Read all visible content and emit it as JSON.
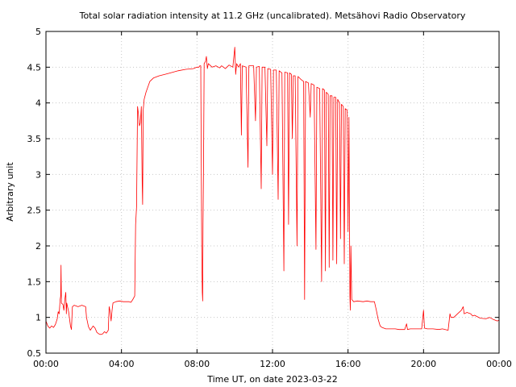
{
  "chart_data": {
    "type": "line",
    "title": "Total solar radiation intensity at 11.2 GHz (uncalibrated). Metsähovi Radio Observatory",
    "xlabel": "Time UT, on date 2023-03-22",
    "ylabel": "Arbitrary unit",
    "xlim": [
      0,
      24
    ],
    "ylim": [
      0.5,
      5
    ],
    "x_ticks": [
      {
        "v": 0,
        "label": "00:00"
      },
      {
        "v": 4,
        "label": "04:00"
      },
      {
        "v": 8,
        "label": "08:00"
      },
      {
        "v": 12,
        "label": "12:00"
      },
      {
        "v": 16,
        "label": "16:00"
      },
      {
        "v": 20,
        "label": "20:00"
      },
      {
        "v": 24,
        "label": "00:00"
      }
    ],
    "y_ticks": [
      {
        "v": 0.5,
        "label": "0.5"
      },
      {
        "v": 1,
        "label": "1"
      },
      {
        "v": 1.5,
        "label": "1.5"
      },
      {
        "v": 2,
        "label": "2"
      },
      {
        "v": 2.5,
        "label": "2.5"
      },
      {
        "v": 3,
        "label": "3"
      },
      {
        "v": 3.5,
        "label": "3.5"
      },
      {
        "v": 4,
        "label": "4"
      },
      {
        "v": 4.5,
        "label": "4.5"
      },
      {
        "v": 5,
        "label": "5"
      }
    ],
    "grid": true,
    "series_color": "#ff0000",
    "series": [
      {
        "points": [
          [
            0.0,
            0.95
          ],
          [
            0.1,
            0.88
          ],
          [
            0.2,
            0.85
          ],
          [
            0.3,
            0.88
          ],
          [
            0.4,
            0.86
          ],
          [
            0.5,
            0.9
          ],
          [
            0.6,
            0.98
          ],
          [
            0.65,
            1.08
          ],
          [
            0.7,
            1.05
          ],
          [
            0.75,
            1.25
          ],
          [
            0.78,
            1.3
          ],
          [
            0.8,
            1.73
          ],
          [
            0.82,
            1.2
          ],
          [
            0.9,
            1.18
          ],
          [
            0.95,
            1.1
          ],
          [
            1.0,
            1.25
          ],
          [
            1.05,
            1.35
          ],
          [
            1.08,
            1.05
          ],
          [
            1.1,
            1.2
          ],
          [
            1.2,
            1.08
          ],
          [
            1.3,
            0.88
          ],
          [
            1.35,
            0.83
          ],
          [
            1.4,
            1.15
          ],
          [
            1.5,
            1.17
          ],
          [
            1.7,
            1.15
          ],
          [
            1.9,
            1.17
          ],
          [
            2.1,
            1.15
          ],
          [
            2.15,
            1.0
          ],
          [
            2.25,
            0.87
          ],
          [
            2.35,
            0.82
          ],
          [
            2.5,
            0.88
          ],
          [
            2.6,
            0.85
          ],
          [
            2.7,
            0.79
          ],
          [
            2.8,
            0.77
          ],
          [
            2.9,
            0.76
          ],
          [
            3.0,
            0.77
          ],
          [
            3.1,
            0.8
          ],
          [
            3.2,
            0.78
          ],
          [
            3.3,
            0.82
          ],
          [
            3.35,
            1.15
          ],
          [
            3.4,
            1.08
          ],
          [
            3.45,
            0.95
          ],
          [
            3.5,
            1.1
          ],
          [
            3.55,
            1.2
          ],
          [
            3.7,
            1.22
          ],
          [
            3.9,
            1.23
          ],
          [
            4.1,
            1.22
          ],
          [
            4.4,
            1.22
          ],
          [
            4.5,
            1.21
          ],
          [
            4.6,
            1.25
          ],
          [
            4.7,
            1.3
          ],
          [
            4.75,
            2.3
          ],
          [
            4.8,
            2.55
          ],
          [
            4.85,
            3.95
          ],
          [
            4.9,
            3.85
          ],
          [
            4.95,
            3.68
          ],
          [
            5.0,
            3.72
          ],
          [
            5.05,
            3.95
          ],
          [
            5.1,
            2.85
          ],
          [
            5.12,
            2.58
          ],
          [
            5.15,
            3.9
          ],
          [
            5.2,
            4.05
          ],
          [
            5.3,
            4.15
          ],
          [
            5.5,
            4.3
          ],
          [
            5.7,
            4.35
          ],
          [
            6.0,
            4.38
          ],
          [
            6.3,
            4.4
          ],
          [
            6.6,
            4.42
          ],
          [
            7.0,
            4.45
          ],
          [
            7.4,
            4.47
          ],
          [
            7.8,
            4.48
          ],
          [
            8.0,
            4.5
          ],
          [
            8.1,
            4.5
          ],
          [
            8.15,
            4.52
          ],
          [
            8.2,
            4.52
          ],
          [
            8.25,
            2.0
          ],
          [
            8.28,
            1.35
          ],
          [
            8.3,
            1.23
          ],
          [
            8.32,
            2.3
          ],
          [
            8.35,
            3.2
          ],
          [
            8.38,
            4.55
          ],
          [
            8.45,
            4.58
          ],
          [
            8.5,
            4.65
          ],
          [
            8.55,
            4.48
          ],
          [
            8.6,
            4.55
          ],
          [
            8.8,
            4.5
          ],
          [
            9.0,
            4.52
          ],
          [
            9.2,
            4.49
          ],
          [
            9.3,
            4.52
          ],
          [
            9.5,
            4.48
          ],
          [
            9.7,
            4.53
          ],
          [
            9.9,
            4.5
          ],
          [
            10.0,
            4.78
          ],
          [
            10.05,
            4.4
          ],
          [
            10.1,
            4.55
          ],
          [
            10.2,
            4.5
          ],
          [
            10.3,
            4.55
          ],
          [
            10.35,
            3.55
          ],
          [
            10.4,
            4.52
          ],
          [
            10.6,
            4.5
          ],
          [
            10.7,
            3.1
          ],
          [
            10.75,
            4.52
          ],
          [
            11.0,
            4.52
          ],
          [
            11.1,
            3.75
          ],
          [
            11.15,
            4.5
          ],
          [
            11.3,
            4.51
          ],
          [
            11.4,
            2.8
          ],
          [
            11.45,
            4.5
          ],
          [
            11.6,
            4.5
          ],
          [
            11.7,
            3.4
          ],
          [
            11.75,
            4.48
          ],
          [
            11.9,
            4.47
          ],
          [
            12.0,
            3.0
          ],
          [
            12.05,
            4.46
          ],
          [
            12.2,
            4.46
          ],
          [
            12.3,
            2.65
          ],
          [
            12.35,
            4.45
          ],
          [
            12.5,
            4.42
          ],
          [
            12.6,
            1.65
          ],
          [
            12.65,
            4.43
          ],
          [
            12.8,
            4.42
          ],
          [
            12.85,
            2.3
          ],
          [
            12.9,
            4.42
          ],
          [
            13.0,
            4.4
          ],
          [
            13.05,
            3.5
          ],
          [
            13.1,
            4.38
          ],
          [
            13.2,
            4.38
          ],
          [
            13.3,
            2.0
          ],
          [
            13.35,
            4.37
          ],
          [
            13.5,
            4.33
          ],
          [
            13.65,
            4.3
          ],
          [
            13.7,
            1.25
          ],
          [
            13.75,
            4.3
          ],
          [
            13.9,
            4.28
          ],
          [
            14.0,
            3.8
          ],
          [
            14.05,
            4.27
          ],
          [
            14.2,
            4.25
          ],
          [
            14.3,
            1.95
          ],
          [
            14.35,
            4.22
          ],
          [
            14.5,
            4.2
          ],
          [
            14.6,
            1.5
          ],
          [
            14.65,
            4.2
          ],
          [
            14.75,
            4.18
          ],
          [
            14.8,
            1.65
          ],
          [
            14.85,
            4.15
          ],
          [
            14.95,
            4.12
          ],
          [
            15.0,
            1.7
          ],
          [
            15.05,
            4.1
          ],
          [
            15.15,
            4.1
          ],
          [
            15.2,
            1.8
          ],
          [
            15.25,
            4.08
          ],
          [
            15.35,
            4.08
          ],
          [
            15.4,
            1.75
          ],
          [
            15.45,
            4.05
          ],
          [
            15.55,
            4.0
          ],
          [
            15.6,
            2.1
          ],
          [
            15.65,
            3.98
          ],
          [
            15.75,
            3.95
          ],
          [
            15.8,
            1.75
          ],
          [
            15.85,
            3.92
          ],
          [
            15.95,
            3.9
          ],
          [
            16.0,
            2.2
          ],
          [
            16.05,
            3.8
          ],
          [
            16.1,
            1.3
          ],
          [
            16.12,
            1.1
          ],
          [
            16.15,
            2.0
          ],
          [
            16.2,
            1.25
          ],
          [
            16.3,
            1.22
          ],
          [
            16.5,
            1.23
          ],
          [
            16.8,
            1.22
          ],
          [
            17.0,
            1.23
          ],
          [
            17.2,
            1.22
          ],
          [
            17.4,
            1.22
          ],
          [
            17.5,
            1.1
          ],
          [
            17.6,
            0.97
          ],
          [
            17.7,
            0.88
          ],
          [
            17.8,
            0.86
          ],
          [
            18.0,
            0.84
          ],
          [
            18.3,
            0.84
          ],
          [
            18.5,
            0.84
          ],
          [
            18.7,
            0.83
          ],
          [
            19.0,
            0.83
          ],
          [
            19.1,
            0.91
          ],
          [
            19.15,
            0.83
          ],
          [
            19.3,
            0.84
          ],
          [
            19.6,
            0.84
          ],
          [
            19.9,
            0.84
          ],
          [
            20.0,
            1.1
          ],
          [
            20.05,
            0.85
          ],
          [
            20.2,
            0.84
          ],
          [
            20.5,
            0.84
          ],
          [
            20.8,
            0.83
          ],
          [
            21.0,
            0.84
          ],
          [
            21.3,
            0.82
          ],
          [
            21.4,
            1.05
          ],
          [
            21.45,
            1.0
          ],
          [
            21.6,
            1.0
          ],
          [
            21.8,
            1.05
          ],
          [
            22.0,
            1.1
          ],
          [
            22.1,
            1.15
          ],
          [
            22.15,
            1.05
          ],
          [
            22.3,
            1.07
          ],
          [
            22.5,
            1.05
          ],
          [
            22.6,
            1.02
          ],
          [
            22.7,
            1.03
          ],
          [
            23.0,
            0.99
          ],
          [
            23.3,
            0.98
          ],
          [
            23.5,
            1.0
          ],
          [
            23.7,
            0.97
          ],
          [
            23.9,
            0.95
          ],
          [
            24.0,
            0.96
          ]
        ]
      }
    ]
  }
}
